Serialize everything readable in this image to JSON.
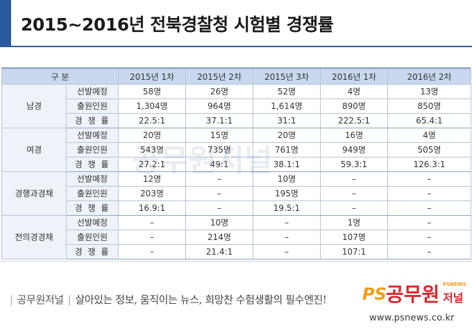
{
  "title": "2015~2016년 전북경찰청 시험별 경쟁률",
  "table": {
    "header": [
      "구  분",
      "2015년 1차",
      "2015년 2차",
      "2015년 3차",
      "2016년 1차",
      "2016년 2차"
    ],
    "groups": [
      {
        "name": "남경",
        "rows": [
          {
            "label": "선발예정",
            "values": [
              "58명",
              "26명",
              "52명",
              "4명",
              "13명"
            ]
          },
          {
            "label": "출원인원",
            "values": [
              "1,304명",
              "964명",
              "1,614명",
              "890명",
              "850명"
            ]
          },
          {
            "label": "경 쟁 률",
            "values": [
              "22.5:1",
              "37.1:1",
              "31:1",
              "222.5:1",
              "65.4:1"
            ]
          }
        ]
      },
      {
        "name": "여경",
        "rows": [
          {
            "label": "선발예정",
            "values": [
              "20명",
              "15명",
              "20명",
              "16명",
              "4명"
            ]
          },
          {
            "label": "출원인원",
            "values": [
              "543명",
              "735명",
              "761명",
              "949명",
              "505명"
            ]
          },
          {
            "label": "경 쟁 률",
            "values": [
              "27.2:1",
              "49:1",
              "38.1:1",
              "59.3:1",
              "126.3:1"
            ]
          }
        ]
      },
      {
        "name": "경행과경채",
        "rows": [
          {
            "label": "선발예정",
            "values": [
              "12명",
              "–",
              "10명",
              "–",
              "–"
            ]
          },
          {
            "label": "출원인원",
            "values": [
              "203명",
              "–",
              "195명",
              "–",
              "–"
            ]
          },
          {
            "label": "경 쟁 률",
            "values": [
              "16.9:1",
              "–",
              "19.5:1",
              "–",
              "–"
            ]
          }
        ]
      },
      {
        "name": "전의경경채",
        "rows": [
          {
            "label": "선발예정",
            "values": [
              "–",
              "10명",
              "–",
              "1명",
              "–"
            ]
          },
          {
            "label": "출원인원",
            "values": [
              "–",
              "214명",
              "–",
              "107명",
              "–"
            ]
          },
          {
            "label": "경 쟁 률",
            "values": [
              "–",
              "21.4:1",
              "–",
              "107:1",
              "–"
            ]
          }
        ]
      }
    ]
  },
  "watermark": {
    "text": "공무원저널"
  },
  "footer": {
    "brand": "공무원저널",
    "tagline": "살아있는 정보, 움직이는 뉴스, 희망찬 수험생활의 필수엔진!",
    "logo_ps": "PS",
    "logo_name": "공무원",
    "logo_name2": "저널",
    "logo_small": "PSNEWS",
    "url": "www.psnews.co.kr"
  },
  "colors": {
    "accent": "#2a5a9e",
    "header_bg": "#c9d8ee",
    "label_bg": "#eef3fa",
    "logo_orange": "#f39c12",
    "logo_red": "#d9262b"
  }
}
